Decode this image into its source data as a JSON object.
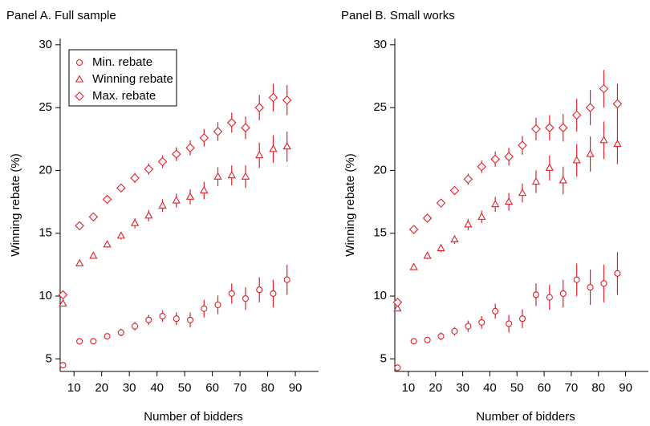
{
  "chart_data": [
    {
      "type": "scatter",
      "title": "Panel A. Full sample",
      "x_label": "Number of bidders",
      "y_label": "Winning rebate (%)",
      "x": [
        6,
        12,
        17,
        22,
        27,
        32,
        37,
        42,
        47,
        52,
        57,
        62,
        67,
        72,
        77,
        82,
        87
      ],
      "xlim": [
        5,
        98.4
      ],
      "xticks": [
        10,
        20,
        30,
        40,
        50,
        60,
        70,
        80,
        90
      ],
      "ylim": [
        4,
        30.5
      ],
      "yticks": [
        5,
        10,
        15,
        20,
        25,
        30
      ],
      "legend": "upper left",
      "series": [
        {
          "name": "Min. rebate",
          "color": "#e0202a",
          "marker": "circle",
          "values": [
            4.5,
            6.4,
            6.4,
            6.8,
            7.1,
            7.6,
            8.1,
            8.4,
            8.2,
            8.1,
            9.0,
            9.3,
            10.2,
            9.8,
            10.5,
            10.2,
            11.3
          ],
          "errors": [
            0.1,
            0.15,
            0.15,
            0.2,
            0.3,
            0.35,
            0.4,
            0.45,
            0.5,
            0.6,
            0.7,
            0.75,
            0.8,
            0.9,
            1.0,
            1.1,
            1.2
          ]
        },
        {
          "name": "Winning rebate",
          "color": "#e0202a",
          "marker": "triangle",
          "values": [
            9.4,
            12.6,
            13.2,
            14.1,
            14.8,
            15.8,
            16.4,
            17.2,
            17.6,
            17.9,
            18.4,
            19.5,
            19.6,
            19.5,
            21.2,
            21.7,
            21.9
          ],
          "errors": [
            0.1,
            0.15,
            0.2,
            0.25,
            0.3,
            0.4,
            0.45,
            0.5,
            0.55,
            0.6,
            0.7,
            0.75,
            0.8,
            0.9,
            1.0,
            1.1,
            1.2
          ]
        },
        {
          "name": "Max. rebate",
          "color": "#e0202a",
          "marker": "diamond",
          "values": [
            10.1,
            15.6,
            16.3,
            17.7,
            18.6,
            19.4,
            20.1,
            20.7,
            21.3,
            21.8,
            22.6,
            23.1,
            23.8,
            23.4,
            25.0,
            25.8,
            25.6
          ],
          "errors": [
            0.1,
            0.15,
            0.2,
            0.25,
            0.3,
            0.4,
            0.45,
            0.5,
            0.55,
            0.6,
            0.7,
            0.75,
            0.8,
            0.9,
            1.0,
            1.1,
            1.2
          ]
        }
      ]
    },
    {
      "type": "scatter",
      "title": "Panel B. Small works",
      "x_label": "Number of bidders",
      "y_label": "Winning rebate (%)",
      "x": [
        6,
        12,
        17,
        22,
        27,
        32,
        37,
        42,
        47,
        52,
        57,
        62,
        67,
        72,
        77,
        82,
        87
      ],
      "xlim": [
        5,
        98.4
      ],
      "xticks": [
        10,
        20,
        30,
        40,
        50,
        60,
        70,
        80,
        90
      ],
      "ylim": [
        4,
        30.5
      ],
      "yticks": [
        5,
        10,
        15,
        20,
        25,
        30
      ],
      "series": [
        {
          "name": "Min. rebate",
          "color": "#e0202a",
          "marker": "circle",
          "values": [
            4.3,
            6.4,
            6.5,
            6.8,
            7.2,
            7.6,
            7.9,
            8.8,
            7.8,
            8.2,
            10.1,
            9.9,
            10.2,
            11.3,
            10.7,
            11.0,
            11.8
          ],
          "errors": [
            0.1,
            0.2,
            0.2,
            0.3,
            0.35,
            0.45,
            0.5,
            0.6,
            0.7,
            0.75,
            0.9,
            1.0,
            1.1,
            1.3,
            1.4,
            1.5,
            1.7
          ]
        },
        {
          "name": "Winning rebate",
          "color": "#e0202a",
          "marker": "triangle",
          "values": [
            9.0,
            12.3,
            13.2,
            13.8,
            14.5,
            15.7,
            16.3,
            17.3,
            17.5,
            18.2,
            19.1,
            20.2,
            19.2,
            20.8,
            21.3,
            22.4,
            22.1
          ],
          "errors": [
            0.1,
            0.2,
            0.25,
            0.3,
            0.35,
            0.45,
            0.5,
            0.6,
            0.7,
            0.75,
            0.9,
            1.0,
            1.1,
            1.3,
            1.4,
            1.5,
            1.6
          ]
        },
        {
          "name": "Max. rebate",
          "color": "#e0202a",
          "marker": "diamond",
          "values": [
            9.5,
            15.3,
            16.2,
            17.4,
            18.4,
            19.3,
            20.3,
            20.9,
            21.1,
            22.0,
            23.3,
            23.4,
            23.4,
            24.4,
            25.0,
            26.5,
            25.3
          ],
          "errors": [
            0.1,
            0.2,
            0.25,
            0.3,
            0.35,
            0.45,
            0.5,
            0.6,
            0.7,
            0.75,
            0.9,
            1.0,
            1.1,
            1.3,
            1.4,
            1.5,
            1.6
          ]
        }
      ]
    }
  ]
}
